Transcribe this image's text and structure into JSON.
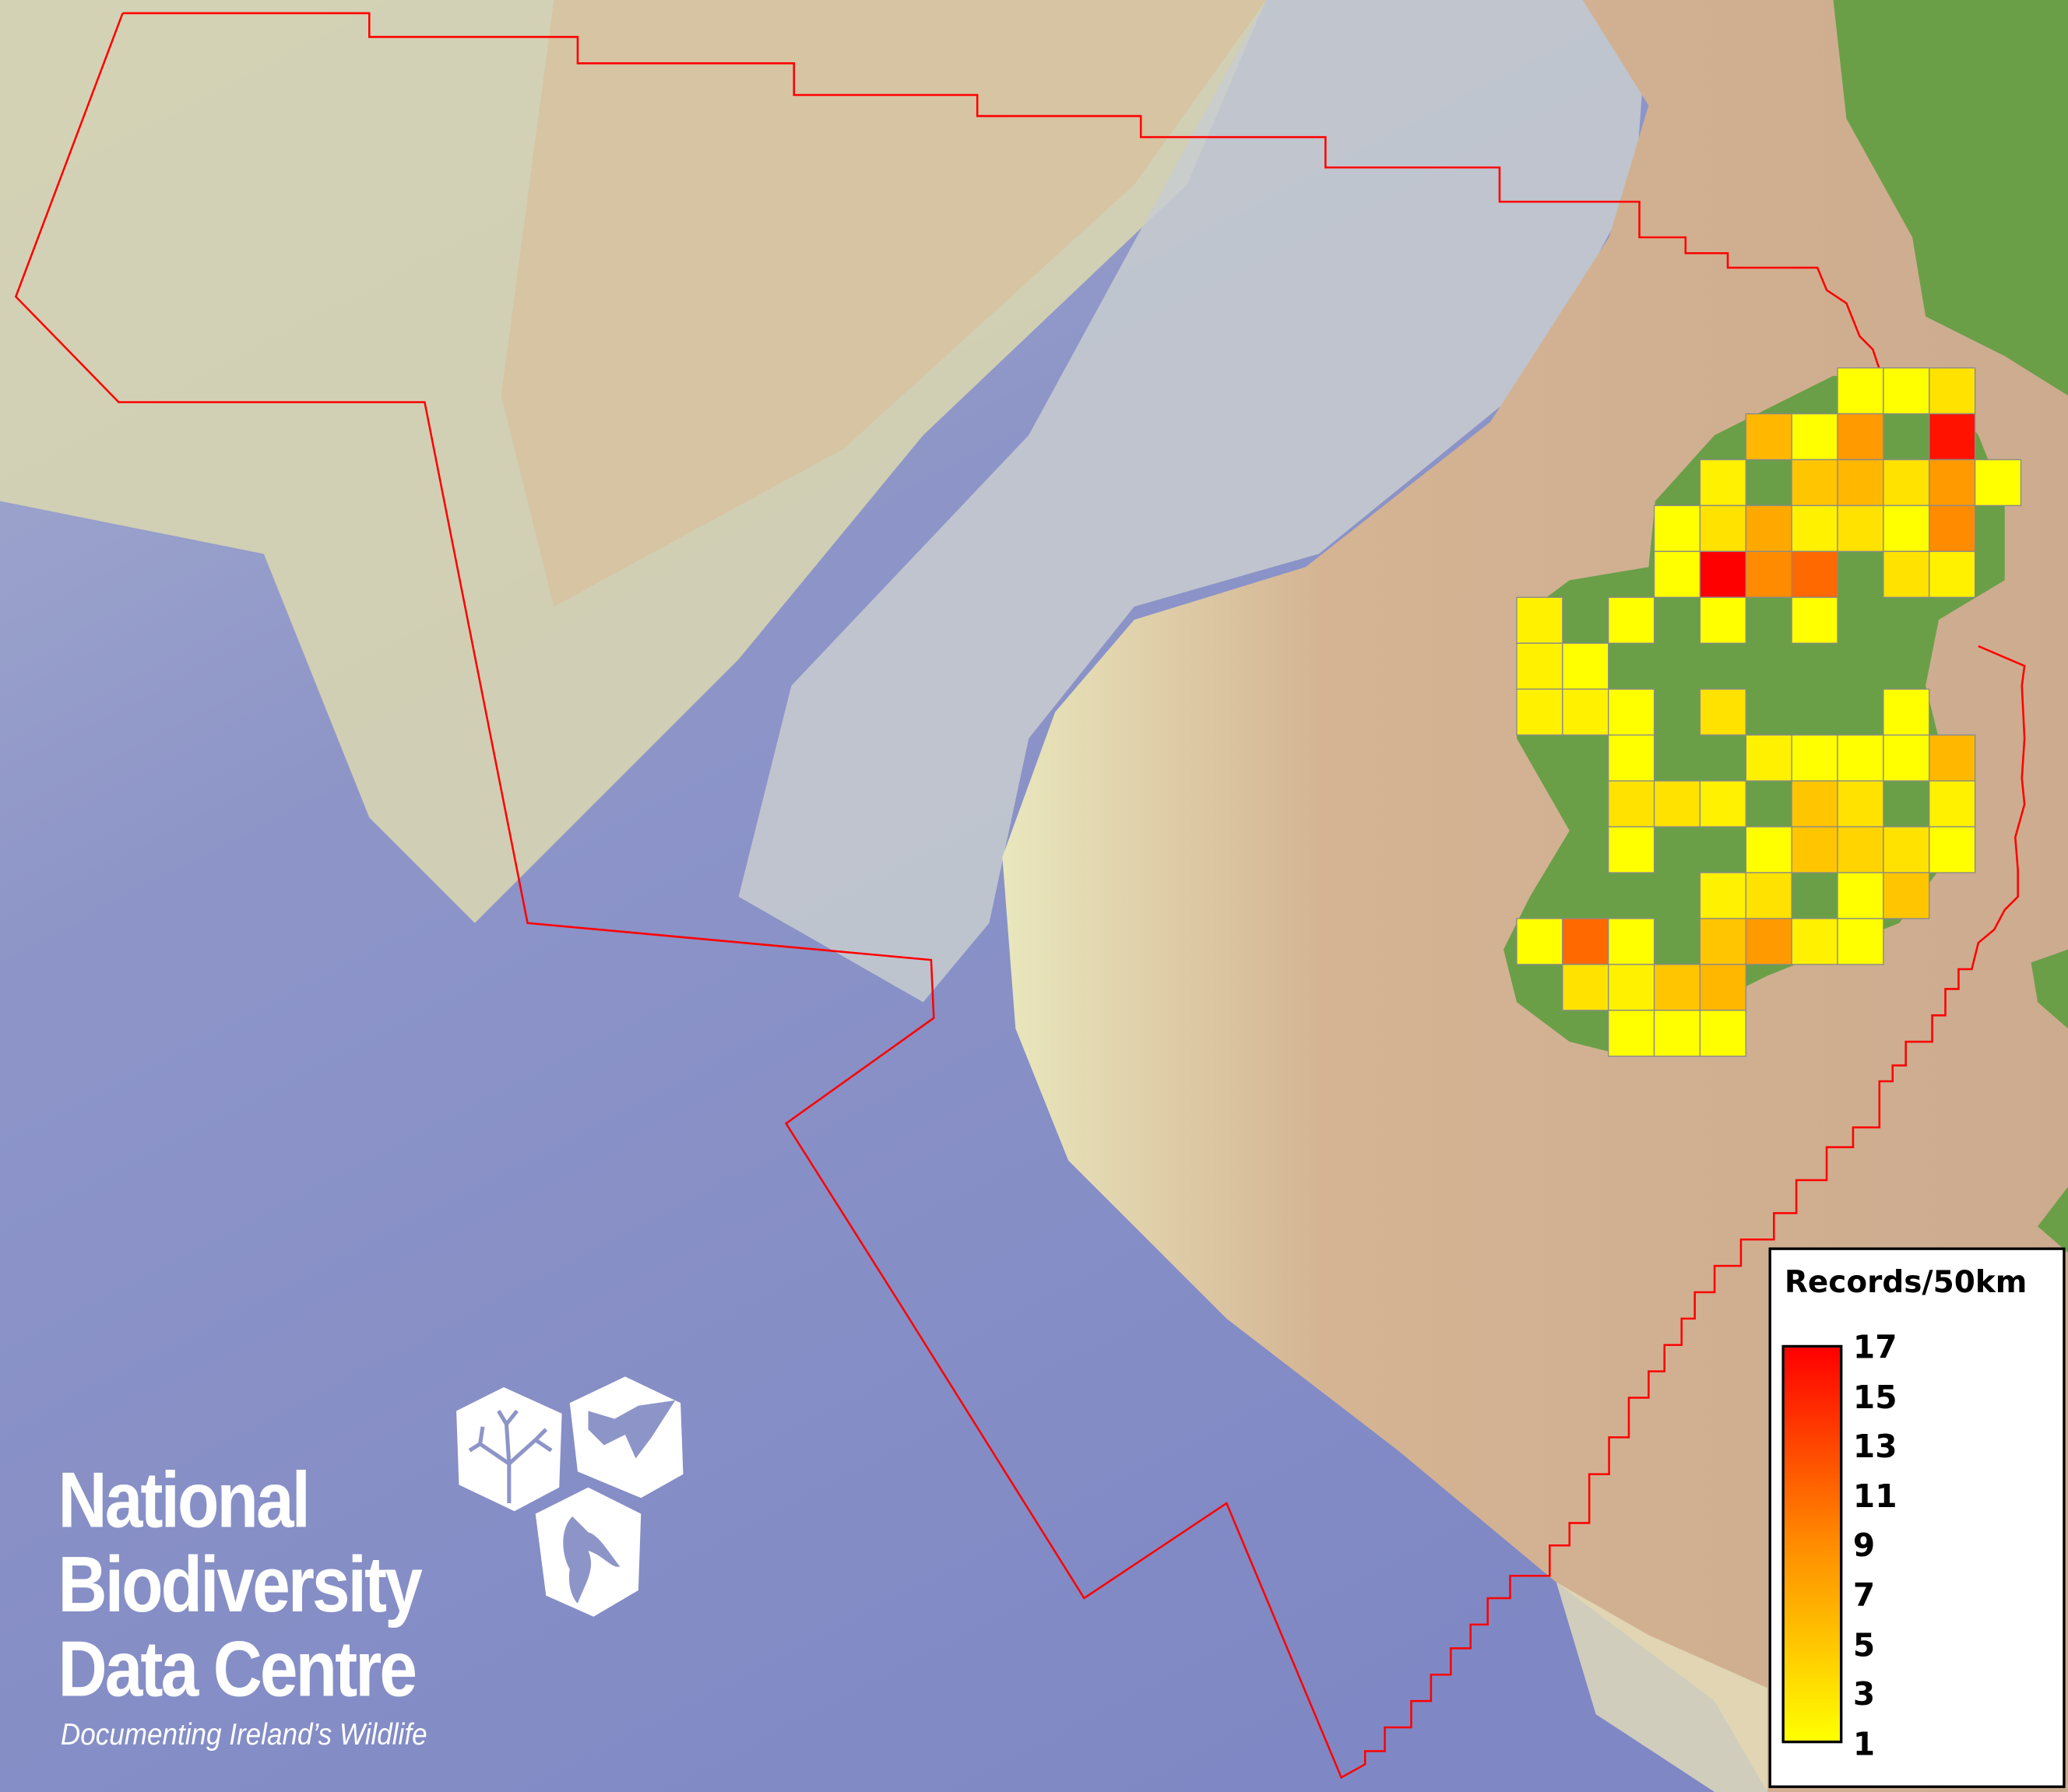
{
  "map": {
    "colors": {
      "ocean": "#8a92c9",
      "shelf": "#e6e2b4",
      "land_bg": "#cfac90",
      "ireland": "#6a9f48",
      "boundary": "#ff0000",
      "grid_stroke": "#8a8a8a"
    },
    "grid": {
      "cell_km": 50,
      "cells": [
        {
          "row": 0,
          "col": 7,
          "value": 1
        },
        {
          "row": 0,
          "col": 8,
          "value": 1
        },
        {
          "row": 0,
          "col": 9,
          "value": 3
        },
        {
          "row": 1,
          "col": 5,
          "value": 6
        },
        {
          "row": 1,
          "col": 6,
          "value": 1
        },
        {
          "row": 1,
          "col": 7,
          "value": 8
        },
        {
          "row": 1,
          "col": 9,
          "value": 16
        },
        {
          "row": 2,
          "col": 4,
          "value": 2
        },
        {
          "row": 2,
          "col": 6,
          "value": 5
        },
        {
          "row": 2,
          "col": 7,
          "value": 6
        },
        {
          "row": 2,
          "col": 8,
          "value": 3
        },
        {
          "row": 2,
          "col": 9,
          "value": 8
        },
        {
          "row": 2,
          "col": 10,
          "value": 1
        },
        {
          "row": 3,
          "col": 3,
          "value": 1
        },
        {
          "row": 3,
          "col": 4,
          "value": 3
        },
        {
          "row": 3,
          "col": 5,
          "value": 7
        },
        {
          "row": 3,
          "col": 6,
          "value": 2
        },
        {
          "row": 3,
          "col": 7,
          "value": 3
        },
        {
          "row": 3,
          "col": 8,
          "value": 1
        },
        {
          "row": 3,
          "col": 9,
          "value": 9
        },
        {
          "row": 4,
          "col": 3,
          "value": 1
        },
        {
          "row": 4,
          "col": 4,
          "value": 17
        },
        {
          "row": 4,
          "col": 5,
          "value": 9
        },
        {
          "row": 4,
          "col": 6,
          "value": 11
        },
        {
          "row": 4,
          "col": 8,
          "value": 3
        },
        {
          "row": 4,
          "col": 9,
          "value": 2
        },
        {
          "row": 5,
          "col": 0,
          "value": 2
        },
        {
          "row": 5,
          "col": 2,
          "value": 1
        },
        {
          "row": 5,
          "col": 4,
          "value": 1
        },
        {
          "row": 5,
          "col": 6,
          "value": 1
        },
        {
          "row": 6,
          "col": 0,
          "value": 2
        },
        {
          "row": 6,
          "col": 1,
          "value": 1
        },
        {
          "row": 7,
          "col": 0,
          "value": 2
        },
        {
          "row": 7,
          "col": 1,
          "value": 2
        },
        {
          "row": 7,
          "col": 2,
          "value": 1
        },
        {
          "row": 7,
          "col": 4,
          "value": 3
        },
        {
          "row": 7,
          "col": 8,
          "value": 1
        },
        {
          "row": 8,
          "col": 2,
          "value": 1
        },
        {
          "row": 8,
          "col": 5,
          "value": 2
        },
        {
          "row": 8,
          "col": 6,
          "value": 1
        },
        {
          "row": 8,
          "col": 7,
          "value": 1
        },
        {
          "row": 8,
          "col": 8,
          "value": 1
        },
        {
          "row": 8,
          "col": 9,
          "value": 6
        },
        {
          "row": 9,
          "col": 2,
          "value": 3
        },
        {
          "row": 9,
          "col": 3,
          "value": 3
        },
        {
          "row": 9,
          "col": 4,
          "value": 2
        },
        {
          "row": 9,
          "col": 6,
          "value": 5
        },
        {
          "row": 9,
          "col": 7,
          "value": 3
        },
        {
          "row": 9,
          "col": 9,
          "value": 2
        },
        {
          "row": 10,
          "col": 2,
          "value": 1
        },
        {
          "row": 10,
          "col": 5,
          "value": 1
        },
        {
          "row": 10,
          "col": 6,
          "value": 5
        },
        {
          "row": 10,
          "col": 7,
          "value": 4
        },
        {
          "row": 10,
          "col": 8,
          "value": 3
        },
        {
          "row": 10,
          "col": 9,
          "value": 1
        },
        {
          "row": 11,
          "col": 4,
          "value": 2
        },
        {
          "row": 11,
          "col": 5,
          "value": 3
        },
        {
          "row": 11,
          "col": 7,
          "value": 1
        },
        {
          "row": 11,
          "col": 8,
          "value": 5
        },
        {
          "row": 12,
          "col": 0,
          "value": 1
        },
        {
          "row": 12,
          "col": 1,
          "value": 11
        },
        {
          "row": 12,
          "col": 2,
          "value": 1
        },
        {
          "row": 12,
          "col": 4,
          "value": 5
        },
        {
          "row": 12,
          "col": 5,
          "value": 8
        },
        {
          "row": 12,
          "col": 6,
          "value": 2
        },
        {
          "row": 12,
          "col": 7,
          "value": 1
        },
        {
          "row": 13,
          "col": 1,
          "value": 3
        },
        {
          "row": 13,
          "col": 2,
          "value": 2
        },
        {
          "row": 13,
          "col": 3,
          "value": 5
        },
        {
          "row": 13,
          "col": 4,
          "value": 6
        },
        {
          "row": 14,
          "col": 2,
          "value": 1
        },
        {
          "row": 14,
          "col": 3,
          "value": 1
        },
        {
          "row": 14,
          "col": 4,
          "value": 1
        }
      ]
    }
  },
  "legend": {
    "title": "Records/50km",
    "min": 1,
    "max": 17,
    "color_low": "#ffff00",
    "color_mid": "#ff8c00",
    "color_high": "#ff0000",
    "ticks": [
      "17",
      "15",
      "13",
      "11",
      "9",
      "7",
      "5",
      "3",
      "1"
    ]
  },
  "logo": {
    "line1": "National",
    "line2": "Biodiversity",
    "line3": "Data Centre",
    "tagline": "Documenting Ireland’s Wildlife",
    "icons": [
      "tree-icon",
      "butterfly-icon",
      "seahorse-icon"
    ]
  }
}
